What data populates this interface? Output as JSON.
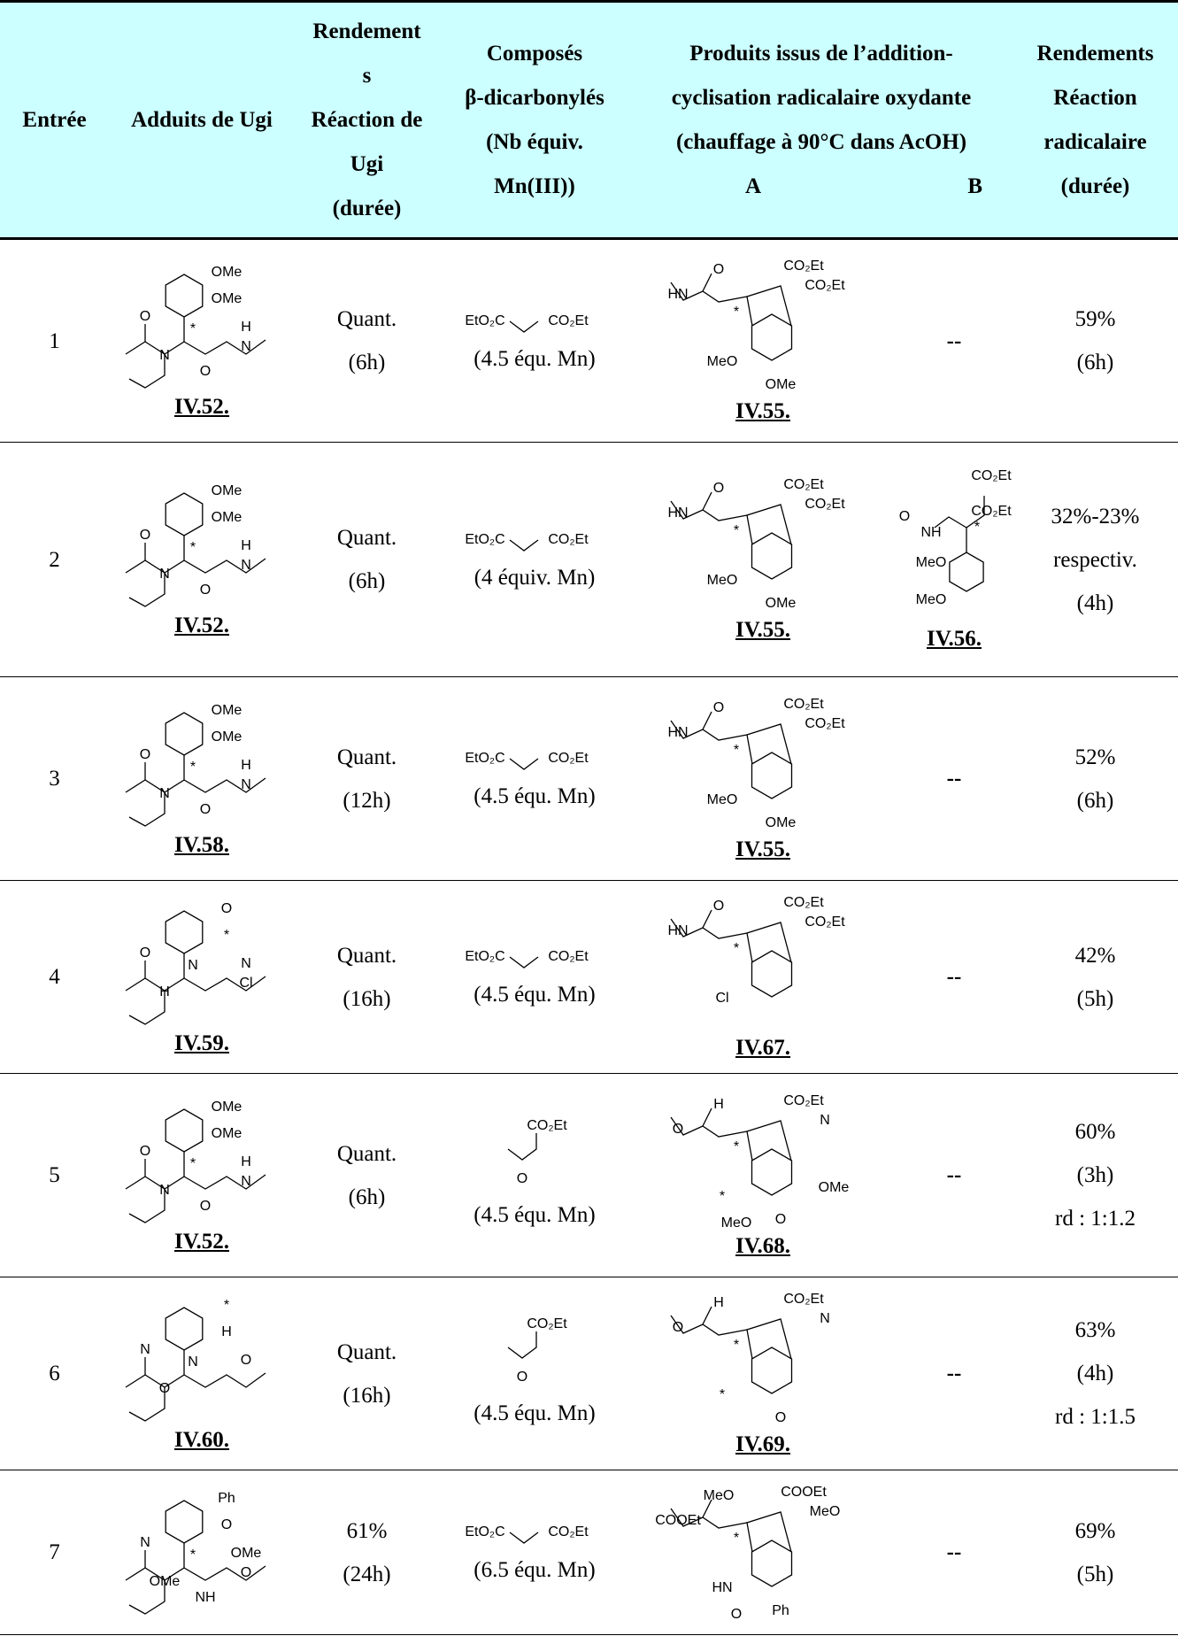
{
  "header": {
    "entry": "Entrée",
    "adduct": "Adduits de Ugi",
    "ugi_yield": [
      "Rendement",
      "s",
      "Réaction de",
      "Ugi",
      "(durée)"
    ],
    "reagent": [
      "Composés",
      "β-dicarbonylés",
      "(Nb équiv.",
      "Mn(III))"
    ],
    "products": [
      "Produits issus de l’addition-",
      "cyclisation radicalaire oxydante",
      "(chauffage à 90°C dans AcOH)"
    ],
    "product_a": "A",
    "product_b": "B",
    "radical_yield": [
      "Rendements",
      "Réaction",
      "radicalaire",
      "(durée)"
    ]
  },
  "rows": [
    {
      "entry": "1",
      "adduct": {
        "labels": [
          "OMe",
          "OMe",
          "O",
          "*",
          "H",
          "N",
          "N",
          "O"
        ],
        "id": "IV.52."
      },
      "ugi_yield": [
        "Quant.",
        "(6h)"
      ],
      "reagent": {
        "labels": [
          "EtO₂C",
          "CO₂Et"
        ],
        "equiv": "(4.5 équ. Mn)"
      },
      "product_a": {
        "labels": [
          "O",
          "CO₂Et",
          "HN",
          "CO₂Et",
          "*",
          "MeO",
          "OMe"
        ],
        "id": "IV.55."
      },
      "product_b": "--",
      "radical_yield": [
        "59%",
        "(6h)"
      ]
    },
    {
      "entry": "2",
      "adduct": {
        "labels": [
          "OMe",
          "OMe",
          "O",
          "*",
          "H",
          "N",
          "N",
          "O"
        ],
        "id": "IV.52."
      },
      "ugi_yield": [
        "Quant.",
        "(6h)"
      ],
      "reagent": {
        "labels": [
          "EtO₂C",
          "CO₂Et"
        ],
        "equiv": "(4 équiv. Mn)"
      },
      "product_a": {
        "labels": [
          "O",
          "CO₂Et",
          "HN",
          "CO₂Et",
          "*",
          "MeO",
          "OMe"
        ],
        "id": "IV.55."
      },
      "product_b": {
        "labels": [
          "CO₂Et",
          "O",
          "*",
          "CO₂Et",
          "NH",
          "MeO",
          "MeO"
        ],
        "id": "IV.56."
      },
      "radical_yield": [
        "32%-23%",
        "respectiv.",
        "(4h)"
      ]
    },
    {
      "entry": "3",
      "adduct": {
        "labels": [
          "OMe",
          "OMe",
          "O",
          "*",
          "H",
          "N",
          "N",
          "O"
        ],
        "id": "IV.58."
      },
      "ugi_yield": [
        "Quant.",
        "(12h)"
      ],
      "reagent": {
        "labels": [
          "EtO₂C",
          "CO₂Et"
        ],
        "equiv": "(4.5 équ. Mn)"
      },
      "product_a": {
        "labels": [
          "O",
          "CO₂Et",
          "HN",
          "CO₂Et",
          "*",
          "MeO",
          "OMe"
        ],
        "id": "IV.55."
      },
      "product_b": "--",
      "radical_yield": [
        "52%",
        "(6h)"
      ]
    },
    {
      "entry": "4",
      "adduct": {
        "labels": [
          "O",
          "*",
          "O",
          "N",
          "N",
          "H",
          "Cl"
        ],
        "id": "IV.59."
      },
      "ugi_yield": [
        "Quant.",
        "(16h)"
      ],
      "reagent": {
        "labels": [
          "EtO₂C",
          "CO₂Et"
        ],
        "equiv": "(4.5 équ. Mn)"
      },
      "product_a": {
        "labels": [
          "O",
          "CO₂Et",
          "HN",
          "CO₂Et",
          "*",
          "Cl"
        ],
        "id": "IV.67."
      },
      "product_b": "--",
      "radical_yield": [
        "42%",
        "(5h)"
      ]
    },
    {
      "entry": "5",
      "adduct": {
        "labels": [
          "OMe",
          "OMe",
          "O",
          "*",
          "H",
          "N",
          "N",
          "O"
        ],
        "id": "IV.52."
      },
      "ugi_yield": [
        "Quant.",
        "(6h)"
      ],
      "reagent": {
        "labels": [
          "CO₂Et",
          "O"
        ],
        "equiv": "(4.5 équ. Mn)"
      },
      "product_a": {
        "labels": [
          "H",
          "CO₂Et",
          "O",
          "N",
          "*",
          "*",
          "O",
          "MeO",
          "OMe"
        ],
        "id": "IV.68."
      },
      "product_b": "--",
      "radical_yield": [
        "60%",
        "(3h)",
        "rd : 1:1.2"
      ]
    },
    {
      "entry": "6",
      "adduct": {
        "labels": [
          "*",
          "H",
          "N",
          "N",
          "O",
          "O"
        ],
        "id": "IV.60."
      },
      "ugi_yield": [
        "Quant.",
        "(16h)"
      ],
      "reagent": {
        "labels": [
          "CO₂Et",
          "O"
        ],
        "equiv": "(4.5 équ. Mn)"
      },
      "product_a": {
        "labels": [
          "H",
          "CO₂Et",
          "O",
          "N",
          "*",
          "*",
          "O"
        ],
        "id": "IV.69."
      },
      "product_b": "--",
      "radical_yield": [
        "63%",
        "(4h)",
        "rd : 1:1.5"
      ]
    },
    {
      "entry": "7",
      "adduct": {
        "labels": [
          "Ph",
          "O",
          "N",
          "*",
          "OMe",
          "OMe",
          "O",
          "NH"
        ]
      },
      "ugi_yield": [
        "61%",
        "(24h)"
      ],
      "reagent": {
        "labels": [
          "EtO₂C",
          "CO₂Et"
        ],
        "equiv": "(6.5 équ. Mn)"
      },
      "product_a": {
        "labels": [
          "MeO",
          "COOEt",
          "COOEt",
          "MeO",
          "*",
          "HN",
          "Ph",
          "O"
        ]
      },
      "product_b": "--",
      "radical_yield": [
        "69%",
        "(5h)"
      ]
    }
  ]
}
